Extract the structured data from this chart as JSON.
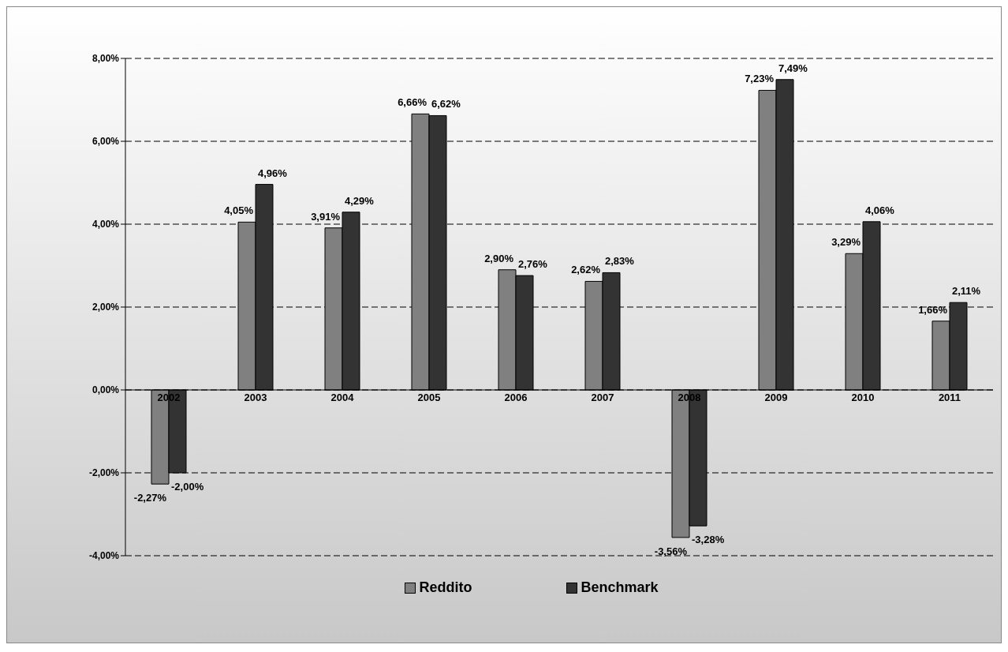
{
  "chart_data": {
    "type": "bar",
    "categories": [
      "2002",
      "2003",
      "2004",
      "2005",
      "2006",
      "2007",
      "2008",
      "2009",
      "2010",
      "2011"
    ],
    "series": [
      {
        "name": "Reddito",
        "color": "#808080",
        "values": [
          -2.27,
          4.05,
          3.91,
          6.66,
          2.9,
          2.62,
          -3.56,
          7.23,
          3.29,
          1.66
        ],
        "value_labels": [
          "-2,27%",
          "4,05%",
          "3,91%",
          "6,66%",
          "2,90%",
          "2,62%",
          "-3,56%",
          "7,23%",
          "3,29%",
          "1,66%"
        ]
      },
      {
        "name": "Benchmark",
        "color": "#333333",
        "values": [
          -2.0,
          4.96,
          4.29,
          6.62,
          2.76,
          2.83,
          -3.28,
          7.49,
          4.06,
          2.11
        ],
        "value_labels": [
          "-2,00%",
          "4,96%",
          "4,29%",
          "6,62%",
          "2,76%",
          "2,83%",
          "-3,28%",
          "7,49%",
          "4,06%",
          "2,11%"
        ]
      }
    ],
    "ylim": [
      -4,
      8
    ],
    "yticks": [
      {
        "value": -4,
        "label": "-4,00%"
      },
      {
        "value": -2,
        "label": "-2,00%"
      },
      {
        "value": 0,
        "label": "0,00%"
      },
      {
        "value": 2,
        "label": "2,00%"
      },
      {
        "value": 4,
        "label": "4,00%"
      },
      {
        "value": 6,
        "label": "6,00%"
      },
      {
        "value": 8,
        "label": "8,00%"
      }
    ],
    "grid": "y",
    "legend": "bottom"
  }
}
